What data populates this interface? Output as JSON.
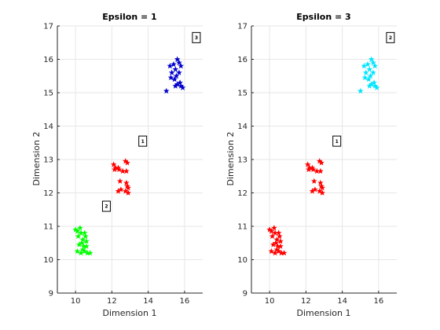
{
  "chart_data": [
    {
      "type": "scatter",
      "title": "Epsilon = 1",
      "xlabel": "Dimension 1",
      "ylabel": "Dimension 2",
      "xlim": [
        9,
        17
      ],
      "ylim": [
        9,
        17
      ],
      "xticks": [
        10,
        12,
        14,
        16
      ],
      "yticks": [
        9,
        10,
        11,
        12,
        13,
        14,
        15,
        16,
        17
      ],
      "grid": true,
      "marker": "star",
      "series": [
        {
          "color": "#00ff00",
          "points": [
            [
              10.0,
              10.9
            ],
            [
              10.1,
              10.85
            ],
            [
              10.25,
              10.95
            ],
            [
              10.3,
              10.8
            ],
            [
              10.15,
              10.7
            ],
            [
              10.4,
              10.6
            ],
            [
              10.55,
              10.7
            ],
            [
              10.5,
              10.8
            ],
            [
              10.6,
              10.55
            ],
            [
              10.35,
              10.5
            ],
            [
              10.2,
              10.45
            ],
            [
              10.45,
              10.4
            ],
            [
              10.6,
              10.4
            ],
            [
              10.1,
              10.25
            ],
            [
              10.3,
              10.2
            ],
            [
              10.5,
              10.25
            ],
            [
              10.65,
              10.2
            ],
            [
              10.8,
              10.2
            ],
            [
              10.4,
              10.3
            ]
          ]
        },
        {
          "color": "#ff0000",
          "points": [
            [
              12.1,
              12.85
            ],
            [
              12.2,
              12.75
            ],
            [
              12.35,
              12.75
            ],
            [
              12.15,
              12.7
            ],
            [
              12.4,
              12.7
            ],
            [
              12.6,
              12.65
            ],
            [
              12.8,
              12.65
            ],
            [
              12.75,
              12.95
            ],
            [
              12.85,
              12.9
            ],
            [
              12.45,
              12.35
            ],
            [
              12.8,
              12.3
            ],
            [
              12.85,
              12.2
            ],
            [
              12.9,
              12.15
            ],
            [
              12.75,
              12.05
            ],
            [
              12.9,
              12.0
            ],
            [
              12.5,
              12.1
            ],
            [
              12.35,
              12.05
            ]
          ]
        },
        {
          "color": "#0000cc",
          "points": [
            [
              15.6,
              16.0
            ],
            [
              15.4,
              15.85
            ],
            [
              15.7,
              15.9
            ],
            [
              15.8,
              15.8
            ],
            [
              15.2,
              15.8
            ],
            [
              15.5,
              15.7
            ],
            [
              15.7,
              15.6
            ],
            [
              15.3,
              15.6
            ],
            [
              15.55,
              15.5
            ],
            [
              15.25,
              15.45
            ],
            [
              15.45,
              15.4
            ],
            [
              15.75,
              15.3
            ],
            [
              15.6,
              15.25
            ],
            [
              15.5,
              15.2
            ],
            [
              15.9,
              15.15
            ],
            [
              15.0,
              15.05
            ],
            [
              15.8,
              15.2
            ]
          ]
        }
      ],
      "annotations": [
        {
          "label": "1",
          "x": 13.7,
          "y": 13.55
        },
        {
          "label": "2",
          "x": 11.7,
          "y": 11.6
        },
        {
          "label": "3",
          "x": 16.65,
          "y": 16.65
        }
      ]
    },
    {
      "type": "scatter",
      "title": "Epsilon = 3",
      "xlabel": "Dimension 1",
      "ylabel": "Dimension 2",
      "xlim": [
        9,
        17
      ],
      "ylim": [
        9,
        17
      ],
      "xticks": [
        10,
        12,
        14,
        16
      ],
      "yticks": [
        9,
        10,
        11,
        12,
        13,
        14,
        15,
        16,
        17
      ],
      "grid": true,
      "marker": "star",
      "series": [
        {
          "color": "#ff0000",
          "points": [
            [
              10.0,
              10.9
            ],
            [
              10.1,
              10.85
            ],
            [
              10.25,
              10.95
            ],
            [
              10.3,
              10.8
            ],
            [
              10.15,
              10.7
            ],
            [
              10.4,
              10.6
            ],
            [
              10.55,
              10.7
            ],
            [
              10.5,
              10.8
            ],
            [
              10.6,
              10.55
            ],
            [
              10.35,
              10.5
            ],
            [
              10.2,
              10.45
            ],
            [
              10.45,
              10.4
            ],
            [
              10.6,
              10.4
            ],
            [
              10.1,
              10.25
            ],
            [
              10.3,
              10.2
            ],
            [
              10.5,
              10.25
            ],
            [
              10.65,
              10.2
            ],
            [
              10.8,
              10.2
            ],
            [
              10.4,
              10.3
            ],
            [
              12.1,
              12.85
            ],
            [
              12.2,
              12.75
            ],
            [
              12.35,
              12.75
            ],
            [
              12.15,
              12.7
            ],
            [
              12.4,
              12.7
            ],
            [
              12.6,
              12.65
            ],
            [
              12.8,
              12.65
            ],
            [
              12.75,
              12.95
            ],
            [
              12.85,
              12.9
            ],
            [
              12.45,
              12.35
            ],
            [
              12.8,
              12.3
            ],
            [
              12.85,
              12.2
            ],
            [
              12.9,
              12.15
            ],
            [
              12.75,
              12.05
            ],
            [
              12.9,
              12.0
            ],
            [
              12.5,
              12.1
            ],
            [
              12.35,
              12.05
            ]
          ]
        },
        {
          "color": "#00e5ff",
          "points": [
            [
              15.6,
              16.0
            ],
            [
              15.4,
              15.85
            ],
            [
              15.7,
              15.9
            ],
            [
              15.8,
              15.8
            ],
            [
              15.2,
              15.8
            ],
            [
              15.5,
              15.7
            ],
            [
              15.7,
              15.6
            ],
            [
              15.3,
              15.6
            ],
            [
              15.55,
              15.5
            ],
            [
              15.25,
              15.45
            ],
            [
              15.45,
              15.4
            ],
            [
              15.75,
              15.3
            ],
            [
              15.6,
              15.25
            ],
            [
              15.5,
              15.2
            ],
            [
              15.9,
              15.15
            ],
            [
              15.0,
              15.05
            ],
            [
              15.8,
              15.2
            ]
          ]
        }
      ],
      "annotations": [
        {
          "label": "1",
          "x": 13.7,
          "y": 13.55
        },
        {
          "label": "2",
          "x": 16.65,
          "y": 16.65
        }
      ]
    }
  ]
}
